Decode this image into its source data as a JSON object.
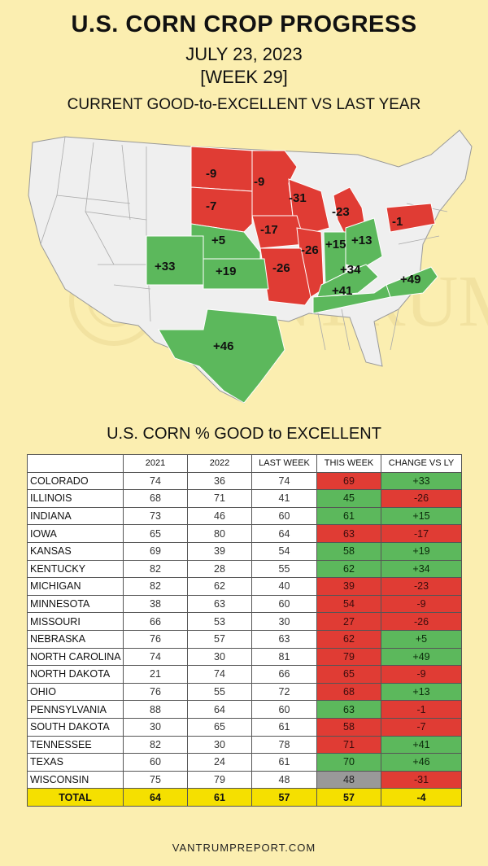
{
  "header": {
    "title": "U.S. CORN CROP PROGRESS",
    "date": "JULY 23, 2023",
    "week": "[WEEK 29]",
    "subtitle": "CURRENT GOOD-to-EXCELLENT VS LAST YEAR"
  },
  "map_labels": {
    "north_dakota": "-9",
    "minnesota": "-9",
    "south_dakota": "-7",
    "wisconsin": "-31",
    "michigan": "-23",
    "pennsylvania": "-1",
    "iowa": "-17",
    "nebraska": "+5",
    "illinois": "-26",
    "indiana": "+15",
    "ohio": "+13",
    "colorado": "+33",
    "kansas": "+19",
    "missouri": "-26",
    "kentucky": "+34",
    "tennessee": "+41",
    "north_carolina": "+49",
    "texas": "+46"
  },
  "colors": {
    "background": "#fbeeb0",
    "positive": "#5cb85c",
    "negative": "#e03c34",
    "neutral_state": "#efefef",
    "total_row": "#f5e000",
    "grey_cell": "#999999"
  },
  "watermark": "VANTRUMP",
  "chart_data": {
    "type": "table",
    "title": "U.S. CORN % GOOD to EXCELLENT",
    "columns": [
      "",
      "2021",
      "2022",
      "LAST WEEK",
      "THIS WEEK",
      "CHANGE VS LY"
    ],
    "rows": [
      {
        "state": "COLORADO",
        "y2021": "74",
        "y2022": "36",
        "last_week": "74",
        "this_week": "69",
        "this_color": "red",
        "change": "+33",
        "change_color": "green"
      },
      {
        "state": "ILLINOIS",
        "y2021": "68",
        "y2022": "71",
        "last_week": "41",
        "this_week": "45",
        "this_color": "green",
        "change": "-26",
        "change_color": "red"
      },
      {
        "state": "INDIANA",
        "y2021": "73",
        "y2022": "46",
        "last_week": "60",
        "this_week": "61",
        "this_color": "green",
        "change": "+15",
        "change_color": "green"
      },
      {
        "state": "IOWA",
        "y2021": "65",
        "y2022": "80",
        "last_week": "64",
        "this_week": "63",
        "this_color": "red",
        "change": "-17",
        "change_color": "red"
      },
      {
        "state": "KANSAS",
        "y2021": "69",
        "y2022": "39",
        "last_week": "54",
        "this_week": "58",
        "this_color": "green",
        "change": "+19",
        "change_color": "green"
      },
      {
        "state": "KENTUCKY",
        "y2021": "82",
        "y2022": "28",
        "last_week": "55",
        "this_week": "62",
        "this_color": "green",
        "change": "+34",
        "change_color": "green"
      },
      {
        "state": "MICHIGAN",
        "y2021": "82",
        "y2022": "62",
        "last_week": "40",
        "this_week": "39",
        "this_color": "red",
        "change": "-23",
        "change_color": "red"
      },
      {
        "state": "MINNESOTA",
        "y2021": "38",
        "y2022": "63",
        "last_week": "60",
        "this_week": "54",
        "this_color": "red",
        "change": "-9",
        "change_color": "red"
      },
      {
        "state": "MISSOURI",
        "y2021": "66",
        "y2022": "53",
        "last_week": "30",
        "this_week": "27",
        "this_color": "red",
        "change": "-26",
        "change_color": "red"
      },
      {
        "state": "NEBRASKA",
        "y2021": "76",
        "y2022": "57",
        "last_week": "63",
        "this_week": "62",
        "this_color": "red",
        "change": "+5",
        "change_color": "green"
      },
      {
        "state": "NORTH CAROLINA",
        "y2021": "74",
        "y2022": "30",
        "last_week": "81",
        "this_week": "79",
        "this_color": "red",
        "change": "+49",
        "change_color": "green"
      },
      {
        "state": "NORTH DAKOTA",
        "y2021": "21",
        "y2022": "74",
        "last_week": "66",
        "this_week": "65",
        "this_color": "red",
        "change": "-9",
        "change_color": "red"
      },
      {
        "state": "OHIO",
        "y2021": "76",
        "y2022": "55",
        "last_week": "72",
        "this_week": "68",
        "this_color": "red",
        "change": "+13",
        "change_color": "green"
      },
      {
        "state": "PENNSYLVANIA",
        "y2021": "88",
        "y2022": "64",
        "last_week": "60",
        "this_week": "63",
        "this_color": "green",
        "change": "-1",
        "change_color": "red"
      },
      {
        "state": "SOUTH DAKOTA",
        "y2021": "30",
        "y2022": "65",
        "last_week": "61",
        "this_week": "58",
        "this_color": "red",
        "change": "-7",
        "change_color": "red"
      },
      {
        "state": "TENNESSEE",
        "y2021": "82",
        "y2022": "30",
        "last_week": "78",
        "this_week": "71",
        "this_color": "red",
        "change": "+41",
        "change_color": "green"
      },
      {
        "state": "TEXAS",
        "y2021": "60",
        "y2022": "24",
        "last_week": "61",
        "this_week": "70",
        "this_color": "green",
        "change": "+46",
        "change_color": "green"
      },
      {
        "state": "WISCONSIN",
        "y2021": "75",
        "y2022": "79",
        "last_week": "48",
        "this_week": "48",
        "this_color": "grey",
        "change": "-31",
        "change_color": "red"
      }
    ],
    "total": {
      "label": "TOTAL",
      "y2021": "64",
      "y2022": "61",
      "last_week": "57",
      "this_week": "57",
      "change": "-4"
    }
  },
  "footer": "VANTRUMPREPORT.COM"
}
